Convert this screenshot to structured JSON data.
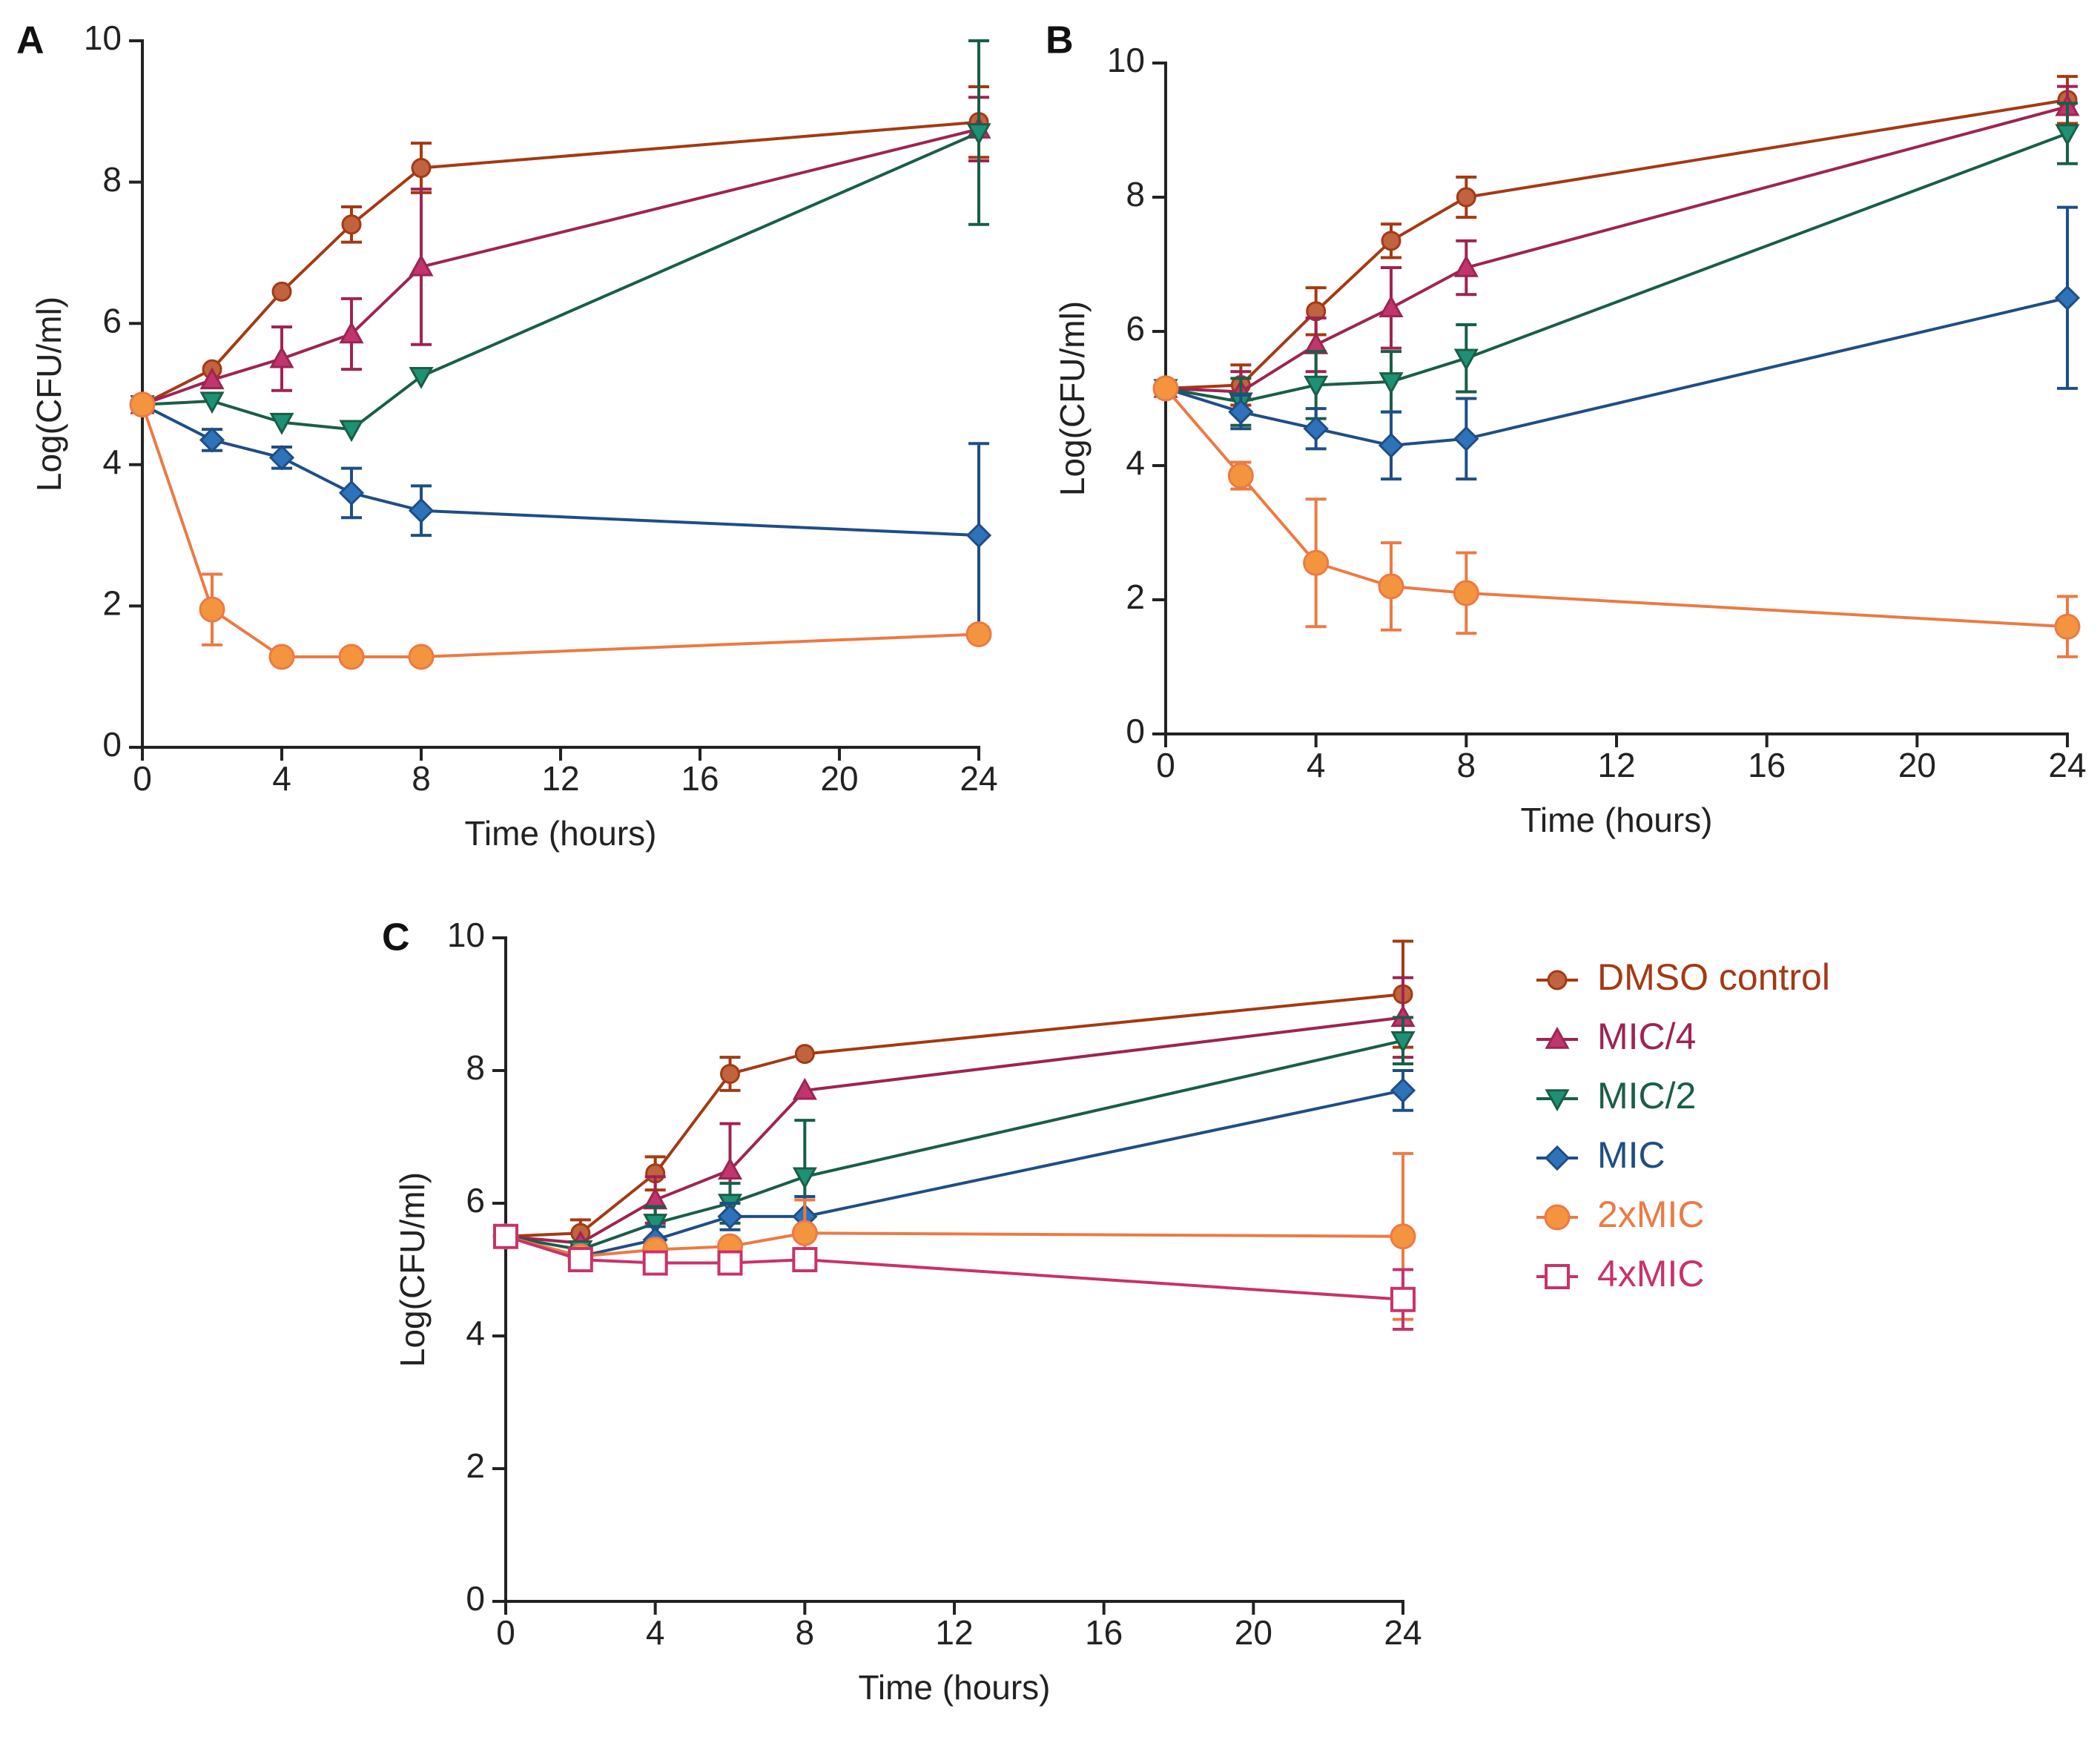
{
  "chart_data": [
    {
      "type": "line",
      "panel": "A",
      "xlabel": "Time (hours)",
      "ylabel": "Log(CFU/ml)",
      "xlim": [
        0,
        24
      ],
      "ylim": [
        0,
        10
      ],
      "xticks": [
        0,
        4,
        8,
        12,
        16,
        20,
        24
      ],
      "yticks": [
        0,
        2,
        4,
        6,
        8,
        10
      ],
      "series": [
        {
          "name": "DMSO control",
          "key": "dmso",
          "x": [
            0,
            2,
            4,
            6,
            8,
            24
          ],
          "values": [
            4.85,
            5.35,
            6.45,
            7.4,
            8.2,
            8.85
          ],
          "errors": [
            0,
            0,
            0,
            0.25,
            0.35,
            0.5
          ]
        },
        {
          "name": "MIC/4",
          "key": "mic4",
          "x": [
            0,
            2,
            4,
            6,
            8,
            24
          ],
          "values": [
            4.85,
            5.2,
            5.5,
            5.85,
            6.8,
            8.75
          ],
          "errors": [
            0,
            0,
            0.45,
            0.5,
            1.1,
            0.45
          ]
        },
        {
          "name": "MIC/2",
          "key": "mic2",
          "x": [
            0,
            2,
            4,
            6,
            8,
            24
          ],
          "values": [
            4.85,
            4.9,
            4.6,
            4.5,
            5.25,
            8.7
          ],
          "errors": [
            0,
            0,
            0,
            0,
            0,
            1.3
          ]
        },
        {
          "name": "MIC",
          "key": "mic",
          "x": [
            0,
            2,
            4,
            6,
            8,
            24
          ],
          "values": [
            4.85,
            4.35,
            4.1,
            3.6,
            3.35,
            3.0
          ],
          "errors": [
            0,
            0.15,
            0.15,
            0.35,
            0.35,
            1.3
          ]
        },
        {
          "name": "2xMIC",
          "key": "mic2x",
          "x": [
            0,
            2,
            4,
            6,
            8,
            24
          ],
          "values": [
            4.85,
            1.95,
            1.28,
            1.28,
            1.28,
            1.6
          ],
          "errors": [
            0,
            0.5,
            0,
            0,
            0,
            0
          ]
        }
      ]
    },
    {
      "type": "line",
      "panel": "B",
      "xlabel": "Time (hours)",
      "ylabel": "Log(CFU/ml)",
      "xlim": [
        0,
        24
      ],
      "ylim": [
        0,
        10
      ],
      "xticks": [
        0,
        4,
        8,
        12,
        16,
        20,
        24
      ],
      "yticks": [
        0,
        2,
        4,
        6,
        8,
        10
      ],
      "series": [
        {
          "name": "DMSO control",
          "key": "dmso",
          "x": [
            0,
            2,
            4,
            6,
            8,
            24
          ],
          "values": [
            5.15,
            5.2,
            6.3,
            7.35,
            8.0,
            9.45
          ],
          "errors": [
            0,
            0.3,
            0.35,
            0.25,
            0.3,
            0.35
          ]
        },
        {
          "name": "MIC/4",
          "key": "mic4",
          "x": [
            0,
            2,
            4,
            6,
            8,
            24
          ],
          "values": [
            5.15,
            5.1,
            5.8,
            6.35,
            6.95,
            9.35
          ],
          "errors": [
            0,
            0.3,
            0.4,
            0.6,
            0.4,
            0.3
          ]
        },
        {
          "name": "MIC/2",
          "key": "mic2",
          "x": [
            0,
            2,
            4,
            6,
            8,
            24
          ],
          "values": [
            5.15,
            4.95,
            5.2,
            5.25,
            5.6,
            8.95
          ],
          "errors": [
            0,
            0.35,
            0.5,
            0.45,
            0.5,
            0.45
          ]
        },
        {
          "name": "MIC",
          "key": "mic",
          "x": [
            0,
            2,
            4,
            6,
            8,
            24
          ],
          "values": [
            5.15,
            4.8,
            4.55,
            4.3,
            4.4,
            6.5
          ],
          "errors": [
            0,
            0.25,
            0.3,
            0.5,
            0.6,
            1.35
          ]
        },
        {
          "name": "2xMIC",
          "key": "mic2x",
          "x": [
            0,
            2,
            4,
            6,
            8,
            24
          ],
          "values": [
            5.15,
            3.85,
            2.55,
            2.2,
            2.1,
            1.6
          ],
          "errors": [
            0,
            0.2,
            0.95,
            0.65,
            0.6,
            0.45
          ]
        }
      ]
    },
    {
      "type": "line",
      "panel": "C",
      "xlabel": "Time (hours)",
      "ylabel": "Log(CFU/ml)",
      "xlim": [
        0,
        24
      ],
      "ylim": [
        0,
        10
      ],
      "xticks": [
        0,
        4,
        8,
        12,
        16,
        20,
        24
      ],
      "yticks": [
        0,
        2,
        4,
        6,
        8,
        10
      ],
      "series": [
        {
          "name": "DMSO control",
          "key": "dmso",
          "x": [
            0,
            2,
            4,
            6,
            8,
            24
          ],
          "values": [
            5.5,
            5.55,
            6.45,
            7.95,
            8.25,
            9.15
          ],
          "errors": [
            0,
            0.2,
            0.25,
            0.25,
            0,
            0.8
          ]
        },
        {
          "name": "MIC/4",
          "key": "mic4",
          "x": [
            0,
            2,
            4,
            6,
            8,
            24
          ],
          "values": [
            5.5,
            5.4,
            6.05,
            6.5,
            7.7,
            8.8
          ],
          "errors": [
            0,
            0,
            0.35,
            0.7,
            0,
            0.6
          ]
        },
        {
          "name": "MIC/2",
          "key": "mic2",
          "x": [
            0,
            2,
            4,
            6,
            8,
            24
          ],
          "values": [
            5.5,
            5.3,
            5.7,
            6.0,
            6.4,
            8.45
          ],
          "errors": [
            0,
            0,
            0.25,
            0.3,
            0.85,
            0.35
          ]
        },
        {
          "name": "MIC",
          "key": "mic",
          "x": [
            0,
            2,
            4,
            6,
            8,
            24
          ],
          "values": [
            5.5,
            5.2,
            5.45,
            5.8,
            5.8,
            7.7
          ],
          "errors": [
            0,
            0,
            0.2,
            0.2,
            0.3,
            0.3
          ]
        },
        {
          "name": "2xMIC",
          "key": "mic2x",
          "x": [
            0,
            2,
            4,
            6,
            8,
            24
          ],
          "values": [
            5.5,
            5.2,
            5.3,
            5.35,
            5.55,
            5.5
          ],
          "errors": [
            0,
            0,
            0,
            0,
            0.5,
            1.25
          ]
        },
        {
          "name": "4xMIC",
          "key": "mic4x",
          "x": [
            0,
            2,
            4,
            6,
            8,
            24
          ],
          "values": [
            5.5,
            5.15,
            5.1,
            5.1,
            5.15,
            4.55
          ],
          "errors": [
            0,
            0,
            0,
            0,
            0,
            0.45
          ]
        }
      ]
    }
  ],
  "legend": {
    "items": [
      {
        "label": "DMSO control",
        "key": "dmso"
      },
      {
        "label": "MIC/4",
        "key": "mic4"
      },
      {
        "label": "MIC/2",
        "key": "mic2"
      },
      {
        "label": "MIC",
        "key": "mic"
      },
      {
        "label": "2xMIC",
        "key": "mic2x"
      },
      {
        "label": "4xMIC",
        "key": "mic4x"
      }
    ]
  },
  "styles": {
    "dmso": {
      "color": "#A33A14",
      "text_color": "#A33A14",
      "fill": "#C0633E",
      "marker": "circle"
    },
    "mic4": {
      "color": "#9E2452",
      "text_color": "#9E2452",
      "fill": "#C0356E",
      "marker": "triangle-up"
    },
    "mic2": {
      "color": "#1A5E47",
      "text_color": "#1A5E47",
      "fill": "#1E9175",
      "marker": "triangle-down"
    },
    "mic": {
      "color": "#1F4E85",
      "text_color": "#1F4E85",
      "fill": "#2E72BA",
      "marker": "diamond"
    },
    "mic2x": {
      "color": "#EB7A45",
      "text_color": "#EB7A45",
      "fill": "#F5943E",
      "marker": "circle-large"
    },
    "mic4x": {
      "color": "#C8326B",
      "text_color": "#C8326B",
      "fill": "#FFFFFF",
      "marker": "square-open"
    }
  }
}
